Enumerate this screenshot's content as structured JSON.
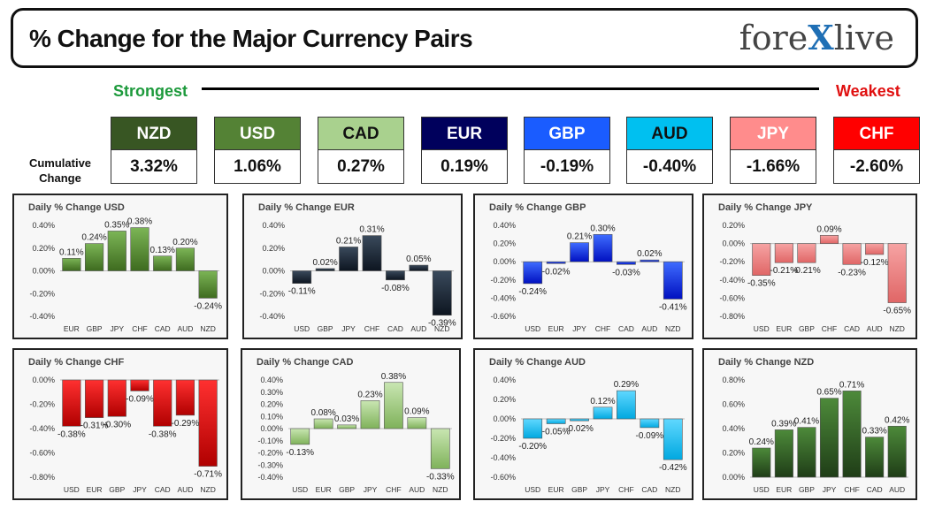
{
  "header": {
    "title": "% Change for the Major Currency Pairs",
    "logo": {
      "part1": "fore",
      "x": "X",
      "part2": "live"
    }
  },
  "strongest_label": "Strongest",
  "weakest_label": "Weakest",
  "cumulative_label_line1": "Cumulative",
  "cumulative_label_line2": "Change",
  "colors": {
    "strong": "#1d9a3c",
    "weak": "#e01010"
  },
  "currencies": [
    {
      "name": "NZD",
      "value": "3.32%",
      "bg": "#385623",
      "fg": "#ffffff"
    },
    {
      "name": "USD",
      "value": "1.06%",
      "bg": "#548235",
      "fg": "#ffffff"
    },
    {
      "name": "CAD",
      "value": "0.27%",
      "bg": "#a9d18e",
      "fg": "#111111"
    },
    {
      "name": "EUR",
      "value": "0.19%",
      "bg": "#00005c",
      "fg": "#ffffff"
    },
    {
      "name": "GBP",
      "value": "-0.19%",
      "bg": "#1a5cff",
      "fg": "#ffffff"
    },
    {
      "name": "AUD",
      "value": "-0.40%",
      "bg": "#00c0f0",
      "fg": "#111111"
    },
    {
      "name": "JPY",
      "value": "-1.66%",
      "bg": "#ff8c8c",
      "fg": "#ffffff"
    },
    {
      "name": "CHF",
      "value": "-2.60%",
      "bg": "#ff0000",
      "fg": "#ffffff"
    }
  ],
  "chart_data": [
    {
      "type": "bar",
      "title": "Daily % Change USD",
      "categories": [
        "EUR",
        "GBP",
        "JPY",
        "CHF",
        "CAD",
        "AUD",
        "NZD"
      ],
      "values": [
        0.11,
        0.24,
        0.35,
        0.38,
        0.13,
        0.2,
        -0.24
      ],
      "labels": [
        "0.11%",
        "0.24%",
        "0.35%",
        "0.38%",
        "0.13%",
        "0.20%",
        "-0.24%"
      ],
      "ylim": [
        -0.4,
        0.4
      ],
      "yticks": [
        -0.4,
        -0.2,
        0.0,
        0.2,
        0.4
      ],
      "ytick_labels": [
        "-0.40%",
        "-0.20%",
        "0.00%",
        "0.20%",
        "0.40%"
      ],
      "color_top": "#7cb556",
      "color_bottom": "#3e6b1f"
    },
    {
      "type": "bar",
      "title": "Daily % Change EUR",
      "categories": [
        "USD",
        "GBP",
        "JPY",
        "CHF",
        "CAD",
        "AUD",
        "NZD"
      ],
      "values": [
        -0.11,
        0.02,
        0.21,
        0.31,
        -0.08,
        0.05,
        -0.39
      ],
      "labels": [
        "-0.11%",
        "0.02%",
        "0.21%",
        "0.31%",
        "-0.08%",
        "0.05%",
        "-0.39%"
      ],
      "ylim": [
        -0.4,
        0.4
      ],
      "yticks": [
        -0.4,
        -0.2,
        0.0,
        0.2,
        0.4
      ],
      "ytick_labels": [
        "-0.40%",
        "-0.20%",
        "0.00%",
        "0.20%",
        "0.40%"
      ],
      "color_top": "#3a4a5c",
      "color_bottom": "#0d1520"
    },
    {
      "type": "bar",
      "title": "Daily % Change GBP",
      "categories": [
        "USD",
        "EUR",
        "JPY",
        "CHF",
        "CAD",
        "AUD",
        "NZD"
      ],
      "values": [
        -0.24,
        -0.02,
        0.21,
        0.3,
        -0.03,
        0.02,
        -0.41
      ],
      "labels": [
        "-0.24%",
        "-0.02%",
        "0.21%",
        "0.30%",
        "-0.03%",
        "0.02%",
        "-0.41%"
      ],
      "ylim": [
        -0.6,
        0.4
      ],
      "yticks": [
        -0.6,
        -0.4,
        -0.2,
        0.0,
        0.2,
        0.4
      ],
      "ytick_labels": [
        "-0.60%",
        "-0.40%",
        "-0.20%",
        "0.00%",
        "0.20%",
        "0.40%"
      ],
      "color_top": "#3f6cff",
      "color_bottom": "#0010c0"
    },
    {
      "type": "bar",
      "title": "Daily % Change JPY",
      "categories": [
        "USD",
        "EUR",
        "GBP",
        "CHF",
        "CAD",
        "AUD",
        "NZD"
      ],
      "values": [
        -0.35,
        -0.21,
        -0.21,
        0.09,
        -0.23,
        -0.12,
        -0.65
      ],
      "labels": [
        "-0.35%",
        "-0.21%",
        "-0.21%",
        "0.09%",
        "-0.23%",
        "-0.12%",
        "-0.65%"
      ],
      "ylim": [
        -0.8,
        0.2
      ],
      "yticks": [
        -0.8,
        -0.6,
        -0.4,
        -0.2,
        0.0,
        0.2
      ],
      "ytick_labels": [
        "-0.80%",
        "-0.60%",
        "-0.40%",
        "-0.20%",
        "0.00%",
        "0.20%"
      ],
      "color_top": "#f6a3a3",
      "color_bottom": "#e06666"
    },
    {
      "type": "bar",
      "title": "Daily % Change CHF",
      "categories": [
        "USD",
        "EUR",
        "GBP",
        "JPY",
        "CAD",
        "AUD",
        "NZD"
      ],
      "values": [
        -0.38,
        -0.31,
        -0.3,
        -0.09,
        -0.38,
        -0.29,
        -0.71
      ],
      "labels": [
        "-0.38%",
        "-0.31%",
        "-0.30%",
        "-0.09%",
        "-0.38%",
        "-0.29%",
        "-0.71%"
      ],
      "ylim": [
        -0.8,
        0.0
      ],
      "yticks": [
        -0.8,
        -0.6,
        -0.4,
        -0.2,
        0.0
      ],
      "ytick_labels": [
        "-0.80%",
        "-0.60%",
        "-0.40%",
        "-0.20%",
        "0.00%"
      ],
      "color_top": "#ff3030",
      "color_bottom": "#b00000"
    },
    {
      "type": "bar",
      "title": "Daily % Change CAD",
      "categories": [
        "USD",
        "EUR",
        "GBP",
        "JPY",
        "CHF",
        "AUD",
        "NZD"
      ],
      "values": [
        -0.13,
        0.08,
        0.03,
        0.23,
        0.38,
        0.09,
        -0.33
      ],
      "labels": [
        "-0.13%",
        "0.08%",
        "0.03%",
        "0.23%",
        "0.38%",
        "0.09%",
        "-0.33%"
      ],
      "ylim": [
        -0.4,
        0.4
      ],
      "yticks": [
        -0.4,
        -0.3,
        -0.2,
        -0.1,
        0.0,
        0.1,
        0.2,
        0.3,
        0.4
      ],
      "ytick_labels": [
        "-0.40%",
        "-0.30%",
        "-0.20%",
        "-0.10%",
        "0.00%",
        "0.10%",
        "0.20%",
        "0.30%",
        "0.40%"
      ],
      "color_top": "#c9e6b2",
      "color_bottom": "#7fb25a"
    },
    {
      "type": "bar",
      "title": "Daily % Change AUD",
      "categories": [
        "USD",
        "EUR",
        "GBP",
        "JPY",
        "CHF",
        "CAD",
        "NZD"
      ],
      "values": [
        -0.2,
        -0.05,
        -0.02,
        0.12,
        0.29,
        -0.09,
        -0.42
      ],
      "labels": [
        "-0.20%",
        "-0.05%",
        "-0.02%",
        "0.12%",
        "0.29%",
        "-0.09%",
        "-0.42%"
      ],
      "ylim": [
        -0.6,
        0.4
      ],
      "yticks": [
        -0.6,
        -0.4,
        -0.2,
        0.0,
        0.2,
        0.4
      ],
      "ytick_labels": [
        "-0.60%",
        "-0.40%",
        "-0.20%",
        "0.00%",
        "0.20%",
        "0.40%"
      ],
      "color_top": "#60d8ff",
      "color_bottom": "#00a8e0"
    },
    {
      "type": "bar",
      "title": "Daily % Change NZD",
      "categories": [
        "USD",
        "EUR",
        "GBP",
        "JPY",
        "CHF",
        "CAD",
        "AUD"
      ],
      "values": [
        0.24,
        0.39,
        0.41,
        0.65,
        0.71,
        0.33,
        0.42
      ],
      "labels": [
        "0.24%",
        "0.39%",
        "0.41%",
        "0.65%",
        "0.71%",
        "0.33%",
        "0.42%"
      ],
      "ylim": [
        0.0,
        0.8
      ],
      "yticks": [
        0.0,
        0.2,
        0.4,
        0.6,
        0.8
      ],
      "ytick_labels": [
        "0.00%",
        "0.20%",
        "0.40%",
        "0.60%",
        "0.80%"
      ],
      "color_top": "#4d8a3a",
      "color_bottom": "#1f3d17"
    }
  ]
}
